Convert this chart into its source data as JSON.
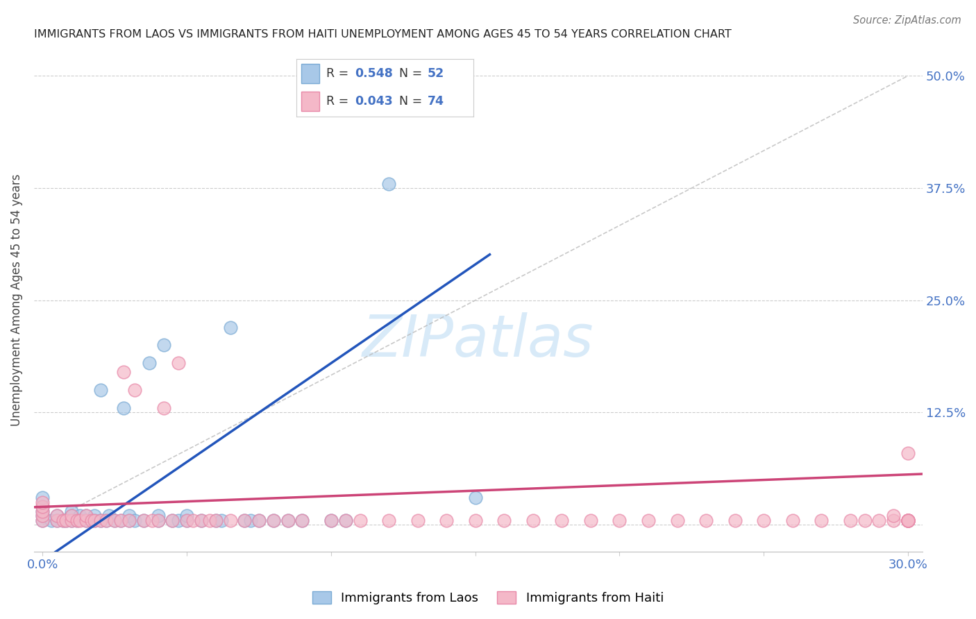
{
  "title": "IMMIGRANTS FROM LAOS VS IMMIGRANTS FROM HAITI UNEMPLOYMENT AMONG AGES 45 TO 54 YEARS CORRELATION CHART",
  "source": "Source: ZipAtlas.com",
  "ylabel": "Unemployment Among Ages 45 to 54 years",
  "xlim": [
    -0.003,
    0.305
  ],
  "ylim": [
    -0.03,
    0.53
  ],
  "yticks": [
    0.0,
    0.125,
    0.25,
    0.375,
    0.5
  ],
  "ytick_labels": [
    "",
    "12.5%",
    "25.0%",
    "37.5%",
    "50.0%"
  ],
  "xticks": [
    0.0,
    0.05,
    0.1,
    0.15,
    0.2,
    0.25,
    0.3
  ],
  "xtick_labels": [
    "0.0%",
    "",
    "",
    "",
    "",
    "",
    "30.0%"
  ],
  "laos_R": 0.548,
  "laos_N": 52,
  "haiti_R": 0.043,
  "haiti_N": 74,
  "laos_color": "#a8c8e8",
  "haiti_color": "#f4b8c8",
  "laos_edge_color": "#7aaad4",
  "haiti_edge_color": "#e888a8",
  "laos_line_color": "#2255bb",
  "haiti_line_color": "#cc4477",
  "ref_line_color": "#bbbbbb",
  "background_color": "#ffffff",
  "watermark_color": "#d8eaf8",
  "laos_x": [
    0.0,
    0.0,
    0.0,
    0.0,
    0.0,
    0.003,
    0.005,
    0.005,
    0.007,
    0.008,
    0.01,
    0.01,
    0.01,
    0.012,
    0.013,
    0.015,
    0.015,
    0.018,
    0.018,
    0.02,
    0.02,
    0.022,
    0.023,
    0.025,
    0.027,
    0.028,
    0.03,
    0.03,
    0.032,
    0.035,
    0.037,
    0.04,
    0.04,
    0.042,
    0.045,
    0.047,
    0.05,
    0.05,
    0.055,
    0.06,
    0.062,
    0.065,
    0.07,
    0.072,
    0.075,
    0.08,
    0.085,
    0.09,
    0.1,
    0.105,
    0.12,
    0.15
  ],
  "laos_y": [
    0.005,
    0.01,
    0.015,
    0.02,
    0.03,
    0.005,
    0.005,
    0.01,
    0.005,
    0.005,
    0.005,
    0.01,
    0.015,
    0.005,
    0.01,
    0.005,
    0.01,
    0.005,
    0.01,
    0.005,
    0.15,
    0.005,
    0.01,
    0.005,
    0.005,
    0.13,
    0.005,
    0.01,
    0.005,
    0.005,
    0.18,
    0.005,
    0.01,
    0.2,
    0.005,
    0.005,
    0.005,
    0.01,
    0.005,
    0.005,
    0.005,
    0.22,
    0.005,
    0.005,
    0.005,
    0.005,
    0.005,
    0.005,
    0.005,
    0.005,
    0.38,
    0.03
  ],
  "haiti_x": [
    0.0,
    0.0,
    0.0,
    0.0,
    0.0,
    0.005,
    0.005,
    0.007,
    0.008,
    0.01,
    0.01,
    0.012,
    0.013,
    0.015,
    0.015,
    0.017,
    0.018,
    0.02,
    0.022,
    0.025,
    0.027,
    0.028,
    0.03,
    0.032,
    0.035,
    0.038,
    0.04,
    0.042,
    0.045,
    0.047,
    0.05,
    0.052,
    0.055,
    0.058,
    0.06,
    0.065,
    0.07,
    0.075,
    0.08,
    0.085,
    0.09,
    0.1,
    0.105,
    0.11,
    0.12,
    0.13,
    0.14,
    0.15,
    0.16,
    0.17,
    0.18,
    0.19,
    0.2,
    0.21,
    0.22,
    0.23,
    0.24,
    0.25,
    0.26,
    0.27,
    0.28,
    0.285,
    0.29,
    0.295,
    0.295,
    0.3,
    0.3,
    0.3,
    0.3,
    0.3,
    0.3,
    0.3,
    0.3,
    0.3
  ],
  "haiti_y": [
    0.005,
    0.01,
    0.015,
    0.02,
    0.025,
    0.005,
    0.01,
    0.005,
    0.005,
    0.005,
    0.01,
    0.005,
    0.005,
    0.005,
    0.01,
    0.005,
    0.005,
    0.005,
    0.005,
    0.005,
    0.005,
    0.17,
    0.005,
    0.15,
    0.005,
    0.005,
    0.005,
    0.13,
    0.005,
    0.18,
    0.005,
    0.005,
    0.005,
    0.005,
    0.005,
    0.005,
    0.005,
    0.005,
    0.005,
    0.005,
    0.005,
    0.005,
    0.005,
    0.005,
    0.005,
    0.005,
    0.005,
    0.005,
    0.005,
    0.005,
    0.005,
    0.005,
    0.005,
    0.005,
    0.005,
    0.005,
    0.005,
    0.005,
    0.005,
    0.005,
    0.005,
    0.005,
    0.005,
    0.005,
    0.01,
    0.005,
    0.005,
    0.005,
    0.005,
    0.005,
    0.005,
    0.005,
    0.005,
    0.08
  ]
}
